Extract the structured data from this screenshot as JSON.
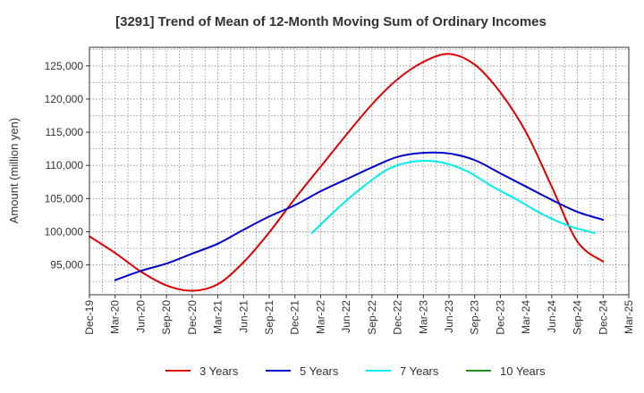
{
  "chart_data": {
    "type": "line",
    "title": "[3291]  Trend of Mean of 12-Month Moving Sum of Ordinary Incomes",
    "xlabel": "",
    "ylabel": "Amount (million yen)",
    "x_ticks": [
      "Dec-19",
      "Mar-20",
      "Jun-20",
      "Sep-20",
      "Dec-20",
      "Mar-21",
      "Jun-21",
      "Sep-21",
      "Dec-21",
      "Mar-22",
      "Jun-22",
      "Sep-22",
      "Dec-22",
      "Mar-23",
      "Jun-23",
      "Sep-23",
      "Dec-23",
      "Mar-24",
      "Jun-24",
      "Sep-24",
      "Dec-24",
      "Mar-25"
    ],
    "y_ticks": [
      95000,
      100000,
      105000,
      110000,
      115000,
      120000,
      125000
    ],
    "y_tick_labels": [
      "95,000",
      "100,000",
      "105,000",
      "110,000",
      "115,000",
      "120,000",
      "125,000"
    ],
    "ylim": [
      90500,
      127800
    ],
    "grid": true,
    "legend_position": "bottom",
    "series": [
      {
        "name": "3 Years",
        "color": "#dd0000",
        "x_index": [
          0,
          1,
          2,
          3,
          4,
          5,
          6,
          7,
          8,
          9,
          10,
          11,
          12,
          13,
          14,
          15,
          16,
          17,
          18,
          19,
          20
        ],
        "values": [
          99300,
          96800,
          94000,
          91900,
          91100,
          92100,
          95400,
          99900,
          105000,
          109800,
          114600,
          119200,
          123000,
          125600,
          126800,
          125200,
          121000,
          115000,
          106800,
          98500,
          95500
        ]
      },
      {
        "name": "5 Years",
        "color": "#0000cc",
        "x_index": [
          1,
          2,
          3,
          4,
          5,
          6,
          7,
          8,
          9,
          10,
          11,
          12,
          13,
          14,
          15,
          16,
          17,
          18,
          19,
          20
        ],
        "values": [
          92700,
          94100,
          95200,
          96700,
          98200,
          100300,
          102300,
          104000,
          106100,
          107900,
          109700,
          111300,
          111900,
          111800,
          110800,
          108800,
          106800,
          104800,
          103000,
          101800
        ]
      },
      {
        "name": "7 Years",
        "color": "#00eeee",
        "x_index": [
          8.66,
          9.66,
          10.66,
          11.66,
          12.66,
          13.66,
          14.66,
          15.66,
          16.66,
          17.66,
          18.66,
          19.66
        ],
        "values": [
          99800,
          103500,
          106800,
          109500,
          110600,
          110500,
          109200,
          106900,
          104800,
          102600,
          100900,
          99800
        ]
      },
      {
        "name": "10 Years",
        "color": "#228b22",
        "x_index": [],
        "values": []
      }
    ]
  }
}
